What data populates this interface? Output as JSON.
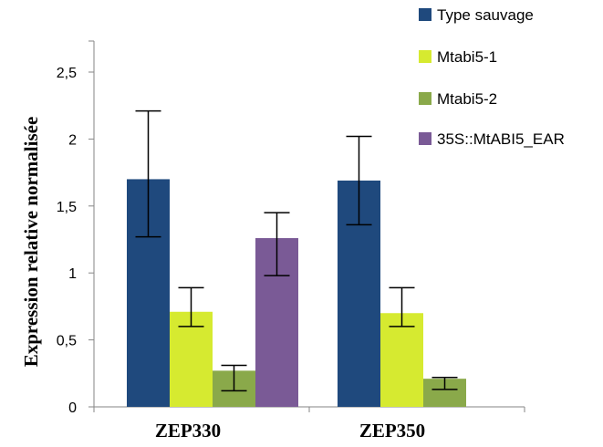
{
  "chart_data": {
    "type": "bar",
    "title": "",
    "xlabel": "",
    "ylabel": "Expression relative normalisée",
    "ylim": [
      0,
      2.5
    ],
    "yticks": [
      "0",
      "0,5",
      "1",
      "1,5",
      "2",
      "2,5"
    ],
    "categories": [
      "ZEP330",
      "ZEP350"
    ],
    "grid": false,
    "legend_position": "top-right",
    "series": [
      {
        "name": "Type sauvage",
        "color": "#1f497d",
        "values": [
          1.7,
          1.69
        ],
        "err_low": [
          1.27,
          1.36
        ],
        "err_high": [
          2.21,
          2.02
        ]
      },
      {
        "name": "Mtabi5-1",
        "color": "#d6ea30",
        "values": [
          0.71,
          0.7
        ],
        "err_low": [
          0.6,
          0.6
        ],
        "err_high": [
          0.89,
          0.89
        ]
      },
      {
        "name": "Mtabi5-2",
        "color": "#8aa94a",
        "values": [
          0.27,
          0.21
        ],
        "err_low": [
          0.12,
          0.13
        ],
        "err_high": [
          0.31,
          0.22
        ]
      },
      {
        "name": "35S::MtABI5_EAR",
        "color": "#7a5a96",
        "values": [
          1.26,
          null
        ],
        "err_low": [
          0.98,
          null
        ],
        "err_high": [
          1.45,
          null
        ]
      }
    ]
  }
}
